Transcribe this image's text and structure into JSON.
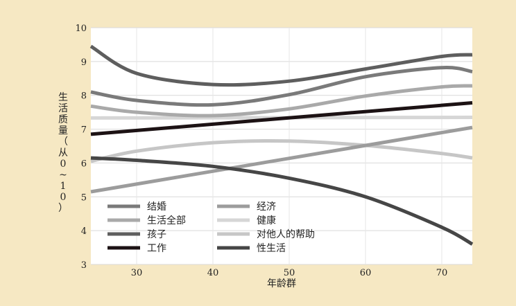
{
  "chart_data": {
    "type": "line",
    "xlabel": "年龄群",
    "ylabel": "生活质量（从0~10）",
    "xlim": [
      24,
      74
    ],
    "ylim": [
      3,
      10
    ],
    "xticks": [
      30,
      40,
      50,
      60,
      70
    ],
    "yticks": [
      3,
      4,
      5,
      6,
      7,
      8,
      9,
      10
    ],
    "grid": "horizontal",
    "legend": "bottom-left",
    "series": [
      {
        "name": "结婚",
        "color": "#7a7a7a",
        "x": [
          24,
          30,
          40,
          50,
          60,
          70,
          74
        ],
        "y": [
          8.1,
          7.85,
          7.72,
          8.02,
          8.55,
          8.82,
          8.7
        ]
      },
      {
        "name": "生活全部",
        "color": "#a9a9a9",
        "x": [
          24,
          30,
          40,
          50,
          60,
          70,
          74
        ],
        "y": [
          7.68,
          7.5,
          7.4,
          7.6,
          7.98,
          8.25,
          8.28
        ]
      },
      {
        "name": "孩子",
        "color": "#5e5e5e",
        "x": [
          24,
          30,
          40,
          50,
          60,
          70,
          74
        ],
        "y": [
          9.45,
          8.65,
          8.32,
          8.42,
          8.78,
          9.15,
          9.2
        ]
      },
      {
        "name": "工作",
        "color": "#1c1214",
        "x": [
          24,
          74
        ],
        "y": [
          6.85,
          7.78
        ]
      },
      {
        "name": "经济",
        "color": "#9c9c9c",
        "x": [
          24,
          74
        ],
        "y": [
          5.15,
          7.05
        ]
      },
      {
        "name": "健康",
        "color": "#d6d6d6",
        "x": [
          24,
          74
        ],
        "y": [
          7.33,
          7.35
        ]
      },
      {
        "name": "对他人的帮助",
        "color": "#c6c6c6",
        "x": [
          24,
          30,
          40,
          50,
          60,
          70,
          74
        ],
        "y": [
          6.05,
          6.35,
          6.6,
          6.65,
          6.52,
          6.28,
          6.15
        ]
      },
      {
        "name": "性生活",
        "color": "#464646",
        "x": [
          24,
          30,
          40,
          50,
          60,
          70,
          74
        ],
        "y": [
          6.15,
          6.08,
          5.9,
          5.55,
          5.0,
          4.1,
          3.6
        ]
      }
    ]
  }
}
